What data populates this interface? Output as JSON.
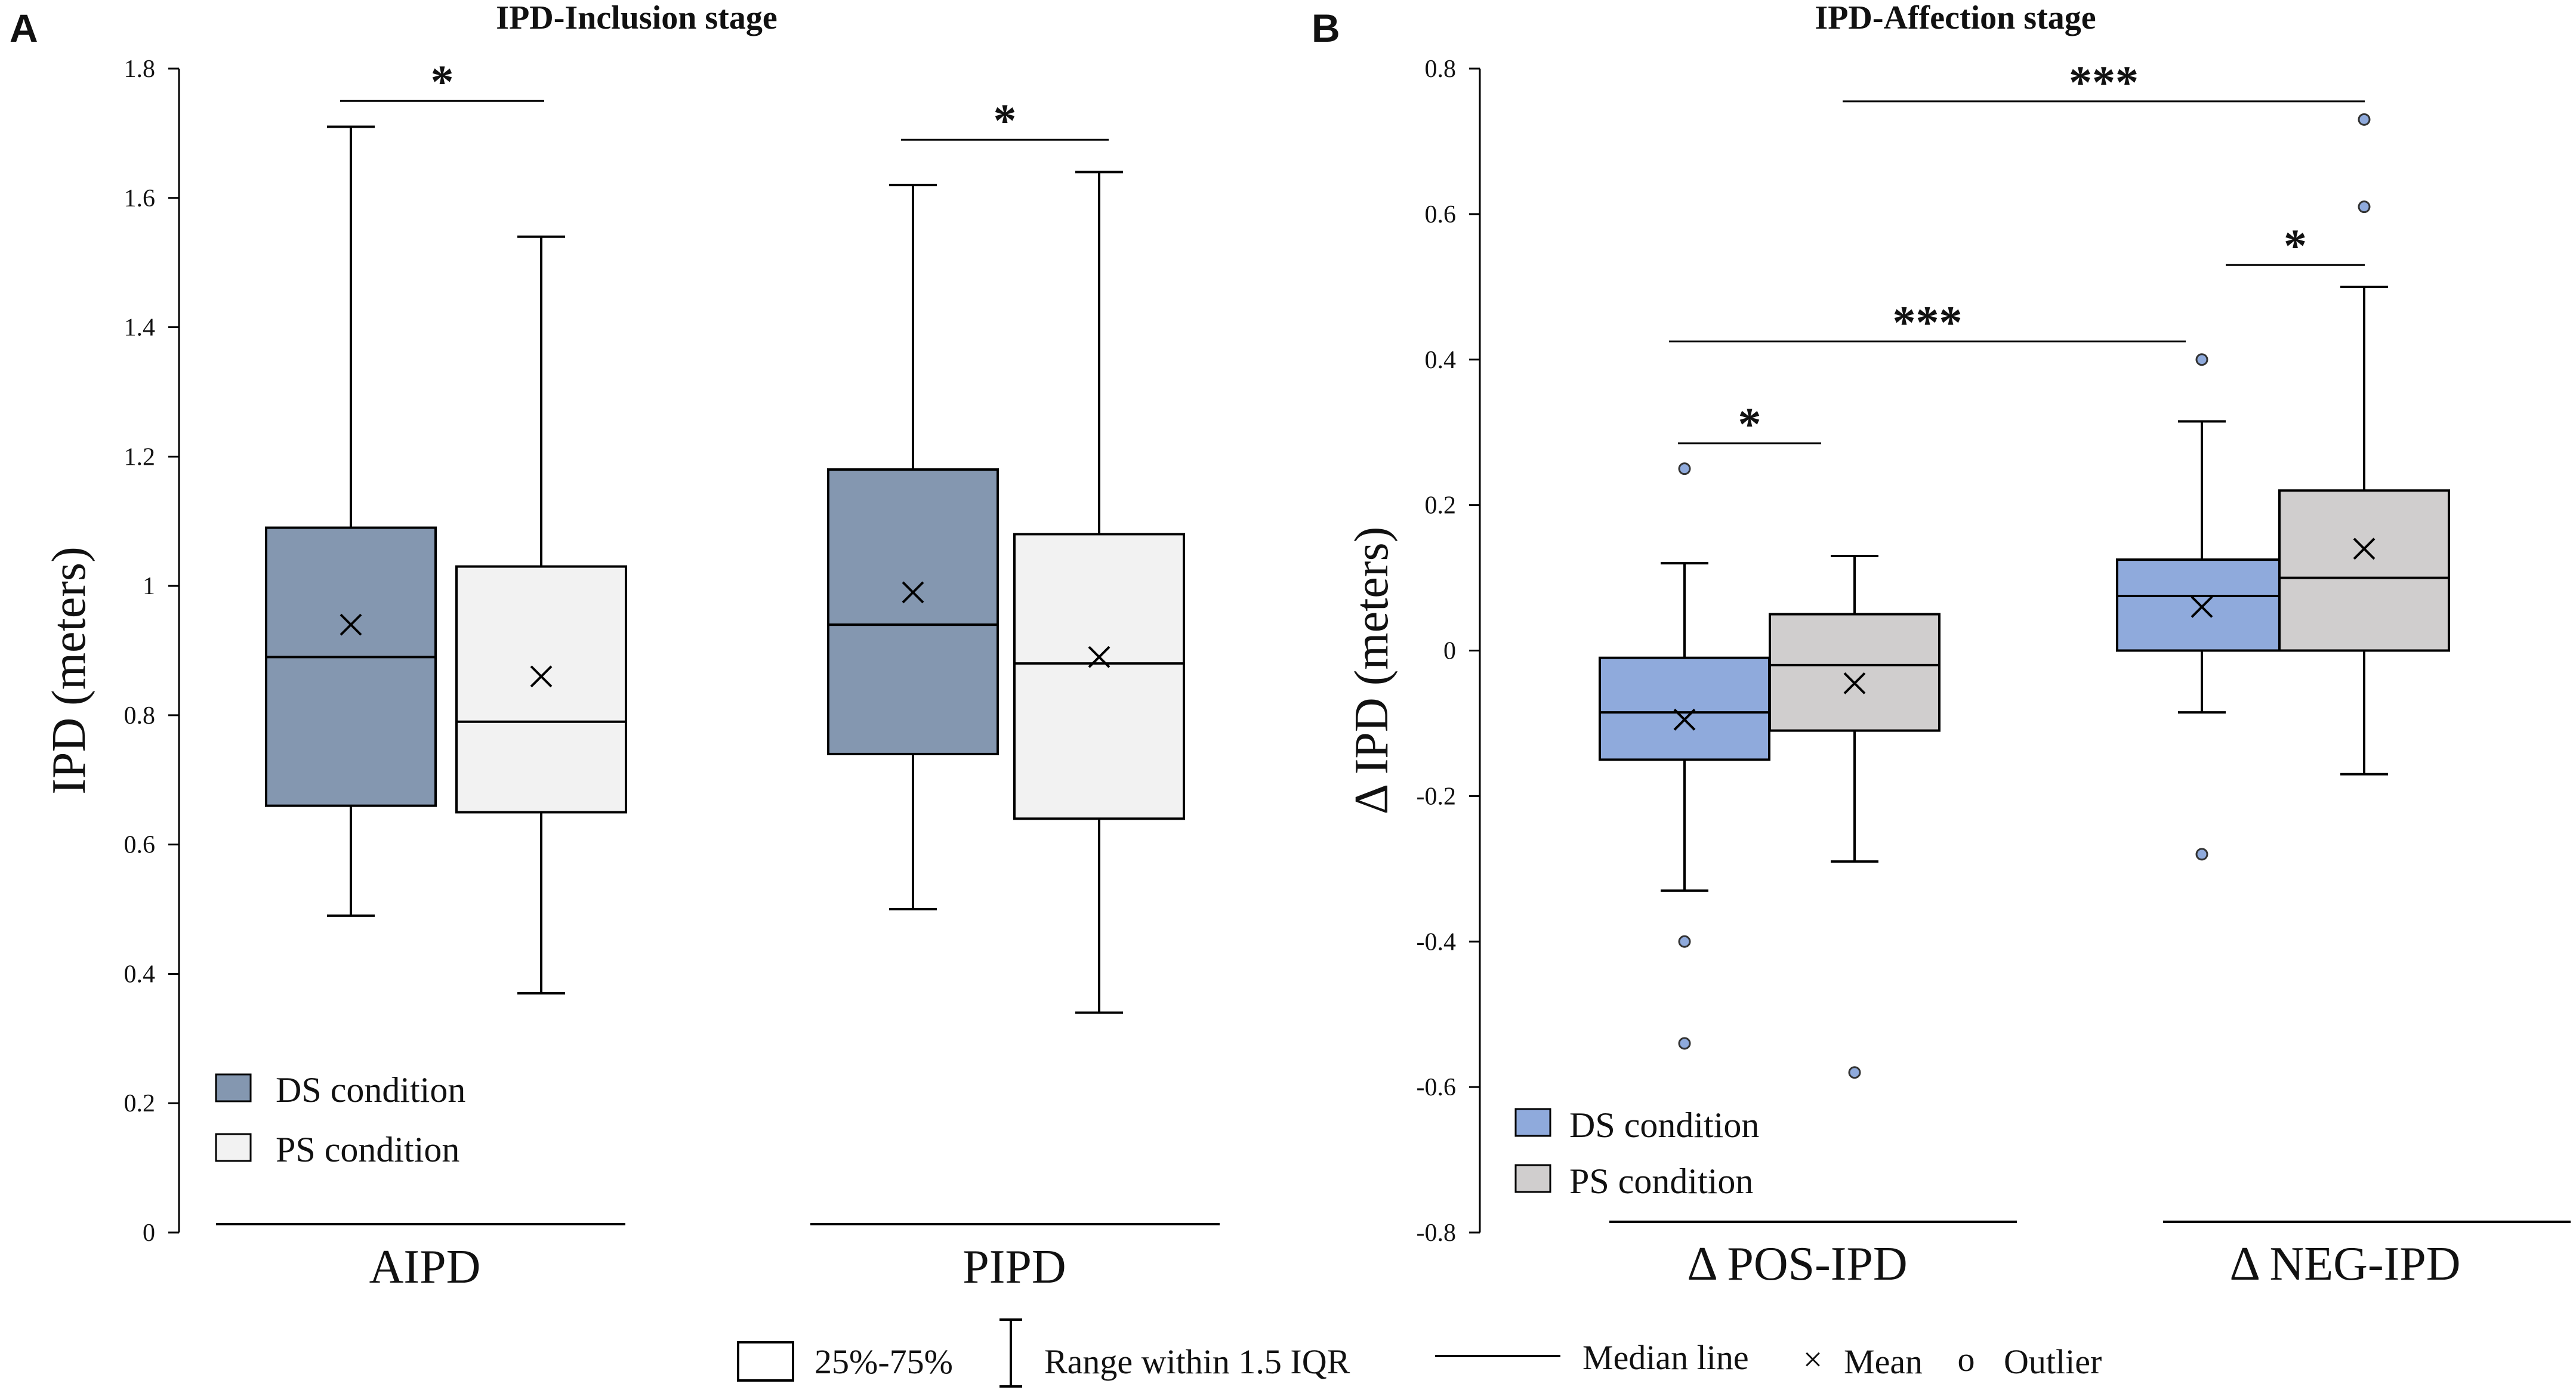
{
  "chart_data": [
    {
      "panel": "A",
      "type": "box",
      "title": "IPD-Inclusion stage",
      "ylabel": "IPD (meters)",
      "ylim": [
        0,
        1.8
      ],
      "yticks": [
        0,
        0.2,
        0.4,
        0.6,
        0.8,
        1,
        1.2,
        1.4,
        1.6,
        1.8
      ],
      "ytick_labels": [
        "0",
        "0.2",
        "0.4",
        "0.6",
        "0.8",
        "1",
        "1.2",
        "1.4",
        "1.6",
        "1.8"
      ],
      "groups": [
        "AIPD",
        "PIPD"
      ],
      "series": [
        {
          "name": "DS condition",
          "color": "#8497b0",
          "boxes": [
            {
              "group": "AIPD",
              "min": 0.49,
              "q1": 0.66,
              "median": 0.89,
              "q3": 1.09,
              "max": 1.71,
              "mean": 0.94,
              "outliers": []
            },
            {
              "group": "PIPD",
              "min": 0.5,
              "q1": 0.74,
              "median": 0.94,
              "q3": 1.18,
              "max": 1.62,
              "mean": 0.99,
              "outliers": []
            }
          ]
        },
        {
          "name": "PS condition",
          "color": "#f2f2f2",
          "boxes": [
            {
              "group": "AIPD",
              "min": 0.37,
              "q1": 0.65,
              "median": 0.79,
              "q3": 1.03,
              "max": 1.54,
              "mean": 0.86,
              "outliers": []
            },
            {
              "group": "PIPD",
              "min": 0.34,
              "q1": 0.64,
              "median": 0.88,
              "q3": 1.08,
              "max": 1.64,
              "mean": 0.89,
              "outliers": []
            }
          ]
        }
      ],
      "significance": [
        {
          "label": "*",
          "group": "AIPD",
          "from": "DS condition",
          "to": "PS condition",
          "y": 1.75
        },
        {
          "label": "*",
          "group": "PIPD",
          "from": "DS condition",
          "to": "PS condition",
          "y": 1.69
        }
      ],
      "legend": [
        "DS condition",
        "PS condition"
      ]
    },
    {
      "panel": "B",
      "type": "box",
      "title": "IPD-Affection stage",
      "ylabel": "Δ IPD (meters)",
      "ylim": [
        -0.8,
        0.8
      ],
      "yticks": [
        -0.8,
        -0.6,
        -0.4,
        -0.2,
        0,
        0.2,
        0.4,
        0.6,
        0.8
      ],
      "ytick_labels": [
        "-0.8",
        "-0.6",
        "-0.4",
        "-0.2",
        "0",
        "0.2",
        "0.4",
        "0.6",
        "0.8"
      ],
      "groups": [
        "Δ POS-IPD",
        "Δ NEG-IPD"
      ],
      "series": [
        {
          "name": "DS condition",
          "color": "#8faadc",
          "boxes": [
            {
              "group": "Δ POS-IPD",
              "min": -0.33,
              "q1": -0.15,
              "median": -0.085,
              "q3": -0.01,
              "max": 0.12,
              "mean": -0.095,
              "outliers": [
                0.25,
                -0.4,
                -0.54
              ]
            },
            {
              "group": "Δ NEG-IPD",
              "min": -0.085,
              "q1": 0.0,
              "median": 0.075,
              "q3": 0.125,
              "max": 0.315,
              "mean": 0.06,
              "outliers": [
                0.4,
                -0.28
              ]
            }
          ]
        },
        {
          "name": "PS condition",
          "color": "#d0cece",
          "boxes": [
            {
              "group": "Δ POS-IPD",
              "min": -0.29,
              "q1": -0.11,
              "median": -0.02,
              "q3": 0.05,
              "max": 0.13,
              "mean": -0.045,
              "outliers": [
                -0.58
              ]
            },
            {
              "group": "Δ NEG-IPD",
              "min": -0.17,
              "q1": 0.0,
              "median": 0.1,
              "q3": 0.22,
              "max": 0.5,
              "mean": 0.14,
              "outliers": [
                0.73,
                0.61
              ]
            }
          ]
        }
      ],
      "significance": [
        {
          "label": "*",
          "from_group": "Δ POS-IPD",
          "from": "DS condition",
          "to_group": "Δ POS-IPD",
          "to": "PS condition",
          "y": 0.285
        },
        {
          "label": "***",
          "from_group": "Δ POS-IPD",
          "from": "DS condition",
          "to_group": "Δ NEG-IPD",
          "to": "DS condition",
          "y": 0.425
        },
        {
          "label": "*",
          "from_group": "Δ NEG-IPD",
          "from": "DS condition",
          "to_group": "Δ NEG-IPD",
          "to": "PS condition",
          "y": 0.53
        },
        {
          "label": "***",
          "from_group": "Δ POS-IPD",
          "from": "PS condition",
          "to_group": "Δ NEG-IPD",
          "to": "PS condition",
          "y": 0.755
        }
      ],
      "legend": [
        "DS condition",
        "PS condition"
      ]
    }
  ],
  "footer_legend": {
    "box_label": "25%-75%",
    "range_label": "Range within 1.5 IQR",
    "median_label": "Median line",
    "mean_symbol": "×",
    "mean_label": "Mean",
    "outlier_symbol": "o",
    "outlier_label": "Outlier"
  }
}
